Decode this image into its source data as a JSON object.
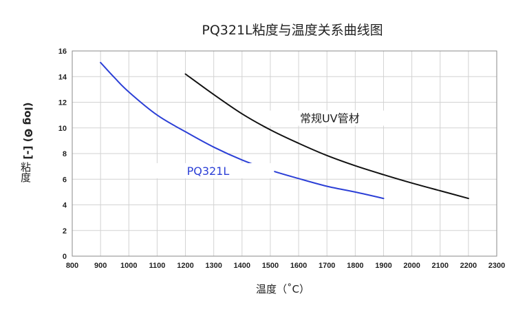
{
  "chart_data": {
    "type": "line",
    "title": "PQ321L粘度与温度关系曲线图",
    "xlabel": "温度（˚C）",
    "ylabel_main": "粘度",
    "ylabel_unit": "(log Θ) [-]",
    "xlim": [
      800,
      2300
    ],
    "ylim": [
      0,
      16
    ],
    "xticks": [
      800,
      900,
      1000,
      1100,
      1200,
      1300,
      1400,
      1500,
      1600,
      1700,
      1800,
      1900,
      2000,
      2100,
      2200,
      2300
    ],
    "yticks": [
      0,
      2,
      4,
      6,
      8,
      10,
      12,
      14,
      16
    ],
    "grid": true,
    "series": [
      {
        "name": "PQ321L",
        "color": "#2b3fd6",
        "label_at": [
          1280,
          6.5
        ],
        "x": [
          900,
          950,
          1000,
          1100,
          1200,
          1300,
          1400,
          1500,
          1600,
          1700,
          1800,
          1900
        ],
        "y": [
          15.1,
          13.9,
          12.8,
          11.0,
          9.7,
          8.5,
          7.5,
          6.7,
          6.05,
          5.45,
          5.0,
          4.5
        ]
      },
      {
        "name": "常规UV管材",
        "color": "#111111",
        "label_at": [
          1710,
          10.6
        ],
        "x": [
          1200,
          1300,
          1400,
          1500,
          1600,
          1700,
          1800,
          1900,
          2000,
          2100,
          2200
        ],
        "y": [
          14.2,
          12.6,
          11.1,
          9.85,
          8.8,
          7.85,
          7.05,
          6.35,
          5.7,
          5.1,
          4.5
        ]
      }
    ]
  }
}
